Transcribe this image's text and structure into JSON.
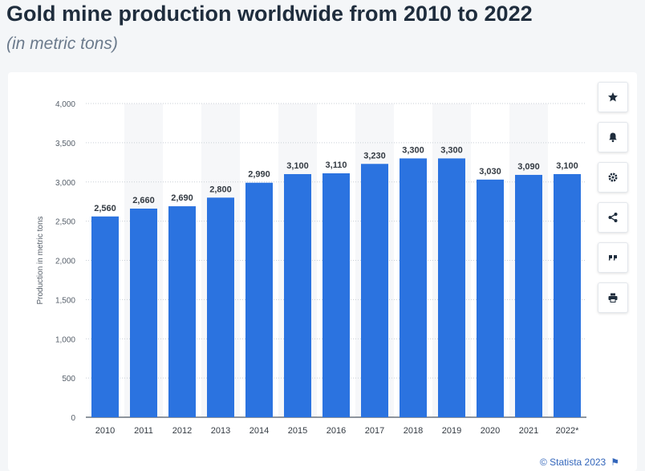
{
  "header": {
    "title": "Gold mine production worldwide from 2010 to 2022",
    "subtitle": "(in metric tons)"
  },
  "toolbar": {
    "buttons": [
      {
        "icon": "star-icon"
      },
      {
        "icon": "bell-icon"
      },
      {
        "icon": "gear-icon"
      },
      {
        "icon": "share-icon"
      },
      {
        "icon": "quote-icon"
      },
      {
        "icon": "print-icon"
      }
    ]
  },
  "credit": {
    "text": "© Statista 2023",
    "icon": "flag-icon"
  },
  "chart_data": {
    "type": "bar",
    "categories": [
      "2010",
      "2011",
      "2012",
      "2013",
      "2014",
      "2015",
      "2016",
      "2017",
      "2018",
      "2019",
      "2020",
      "2021",
      "2022*"
    ],
    "values": [
      2560,
      2660,
      2690,
      2800,
      2990,
      3100,
      3110,
      3230,
      3300,
      3300,
      3030,
      3090,
      3100
    ],
    "value_labels": [
      "2,560",
      "2,660",
      "2,690",
      "2,800",
      "2,990",
      "3,100",
      "3,110",
      "3,230",
      "3,300",
      "3,300",
      "3,030",
      "3,090",
      "3,100"
    ],
    "ylabel": "Production in metric tons",
    "xlabel": "",
    "ylim": [
      0,
      4000
    ],
    "yticks": [
      0,
      500,
      1000,
      1500,
      2000,
      2500,
      3000,
      3500,
      4000
    ],
    "ytick_labels": [
      "0",
      "500",
      "1,000",
      "1,500",
      "2,000",
      "2,500",
      "3,000",
      "3,500",
      "4,000"
    ],
    "grid": true,
    "bar_color": "#2b73e0"
  }
}
